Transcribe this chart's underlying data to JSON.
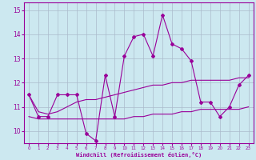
{
  "xlabel": "Windchill (Refroidissement éolien,°C)",
  "hours": [
    0,
    1,
    2,
    3,
    4,
    5,
    6,
    7,
    8,
    9,
    10,
    11,
    12,
    13,
    14,
    15,
    16,
    17,
    18,
    19,
    20,
    21,
    22,
    23
  ],
  "main_line": [
    11.5,
    10.6,
    10.6,
    11.5,
    11.5,
    11.5,
    9.9,
    9.6,
    12.3,
    10.6,
    13.1,
    13.9,
    14.0,
    13.1,
    14.8,
    13.6,
    13.4,
    12.9,
    11.2,
    11.2,
    10.6,
    11.0,
    11.9,
    12.3
  ],
  "upper_line": [
    11.5,
    10.8,
    10.7,
    10.8,
    11.0,
    11.2,
    11.3,
    11.3,
    11.4,
    11.5,
    11.6,
    11.7,
    11.8,
    11.9,
    11.9,
    12.0,
    12.0,
    12.1,
    12.1,
    12.1,
    12.1,
    12.1,
    12.2,
    12.2
  ],
  "lower_line": [
    10.6,
    10.5,
    10.5,
    10.5,
    10.5,
    10.5,
    10.5,
    10.5,
    10.5,
    10.5,
    10.5,
    10.6,
    10.6,
    10.7,
    10.7,
    10.7,
    10.8,
    10.8,
    10.9,
    10.9,
    10.9,
    10.9,
    10.9,
    11.0
  ],
  "line_color": "#990099",
  "bg_color": "#cce8f0",
  "grid_color": "#aabbcc",
  "ylim": [
    9.5,
    15.3
  ],
  "yticks": [
    10,
    11,
    12,
    13,
    14,
    15
  ],
  "xlim": [
    -0.5,
    23.5
  ]
}
